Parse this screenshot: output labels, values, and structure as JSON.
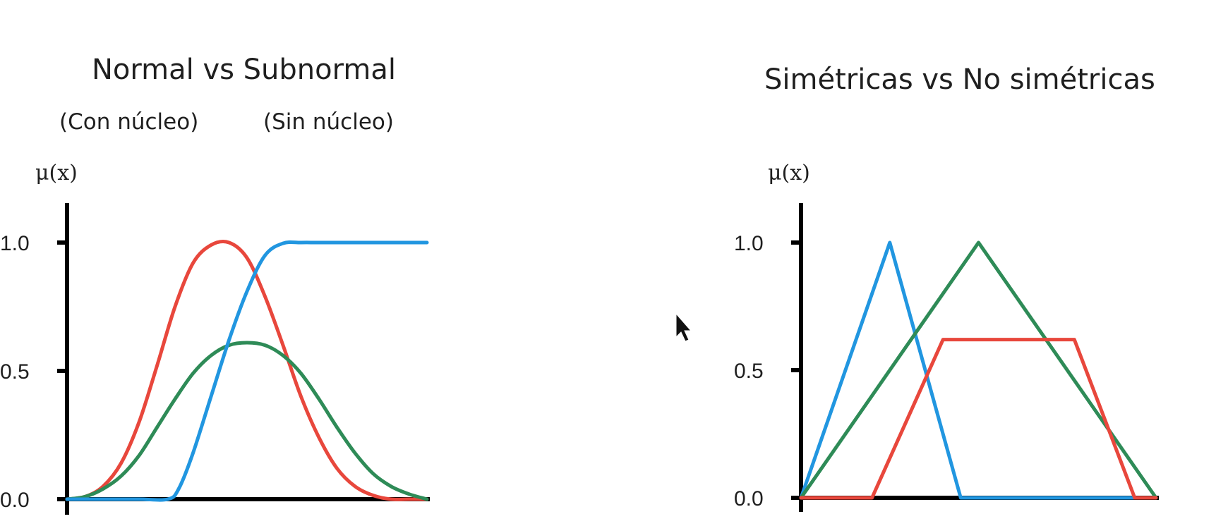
{
  "chart_data": [
    {
      "type": "line",
      "title": "Normal vs Subnormal",
      "annotations": [
        "(Con núcleo)",
        "(Sin núcleo)"
      ],
      "ylabel": "μ(x)",
      "xlabel": "",
      "ylim": [
        0,
        1
      ],
      "xlim": [
        0,
        100
      ],
      "y_ticks": [
        "0.0",
        "0.5",
        "1.0"
      ],
      "grid": false,
      "series": [
        {
          "color": "#e8473c",
          "points": [
            [
              0,
              0
            ],
            [
              5,
              0.01
            ],
            [
              10,
              0.05
            ],
            [
              15,
              0.14
            ],
            [
              20,
              0.3
            ],
            [
              25,
              0.52
            ],
            [
              30,
              0.75
            ],
            [
              35,
              0.92
            ],
            [
              40,
              0.99
            ],
            [
              45,
              1.0
            ],
            [
              50,
              0.94
            ],
            [
              55,
              0.79
            ],
            [
              60,
              0.6
            ],
            [
              65,
              0.4
            ],
            [
              70,
              0.24
            ],
            [
              75,
              0.12
            ],
            [
              80,
              0.05
            ],
            [
              85,
              0.015
            ],
            [
              90,
              0.0
            ],
            [
              95,
              0.0
            ],
            [
              100,
              0.0
            ]
          ]
        },
        {
          "color": "#2e8b57",
          "points": [
            [
              0,
              0
            ],
            [
              5,
              0.01
            ],
            [
              10,
              0.04
            ],
            [
              15,
              0.09
            ],
            [
              20,
              0.17
            ],
            [
              25,
              0.28
            ],
            [
              30,
              0.39
            ],
            [
              35,
              0.49
            ],
            [
              40,
              0.56
            ],
            [
              45,
              0.6
            ],
            [
              50,
              0.61
            ],
            [
              55,
              0.6
            ],
            [
              60,
              0.56
            ],
            [
              65,
              0.49
            ],
            [
              70,
              0.39
            ],
            [
              75,
              0.28
            ],
            [
              80,
              0.18
            ],
            [
              85,
              0.1
            ],
            [
              90,
              0.05
            ],
            [
              95,
              0.02
            ],
            [
              100,
              0.0
            ]
          ]
        },
        {
          "color": "#2196e0",
          "points": [
            [
              0,
              0
            ],
            [
              10,
              0
            ],
            [
              20,
              0
            ],
            [
              28,
              0
            ],
            [
              31,
              0.04
            ],
            [
              35,
              0.18
            ],
            [
              40,
              0.4
            ],
            [
              45,
              0.62
            ],
            [
              50,
              0.81
            ],
            [
              55,
              0.95
            ],
            [
              60,
              0.997
            ],
            [
              65,
              1.0
            ],
            [
              70,
              1.0
            ],
            [
              80,
              1.0
            ],
            [
              90,
              1.0
            ],
            [
              100,
              1.0
            ]
          ]
        }
      ]
    },
    {
      "type": "line",
      "title": "Simétricas vs No simétricas",
      "ylabel": "μ(x)",
      "xlabel": "",
      "ylim": [
        0,
        1
      ],
      "xlim": [
        0,
        100
      ],
      "y_ticks": [
        "0.0",
        "0.5",
        "1.0"
      ],
      "grid": false,
      "series": [
        {
          "color": "#2196e0",
          "points": [
            [
              0,
              0
            ],
            [
              25,
              1.0
            ],
            [
              45,
              0.0
            ],
            [
              100,
              0.0
            ]
          ]
        },
        {
          "color": "#2e8b57",
          "points": [
            [
              0,
              0
            ],
            [
              50,
              1.0
            ],
            [
              100,
              0.0
            ]
          ]
        },
        {
          "color": "#e8473c",
          "points": [
            [
              0,
              0
            ],
            [
              20,
              0.0
            ],
            [
              40,
              0.62
            ],
            [
              77,
              0.62
            ],
            [
              94,
              0.0
            ],
            [
              100,
              0.0
            ]
          ]
        }
      ]
    }
  ]
}
